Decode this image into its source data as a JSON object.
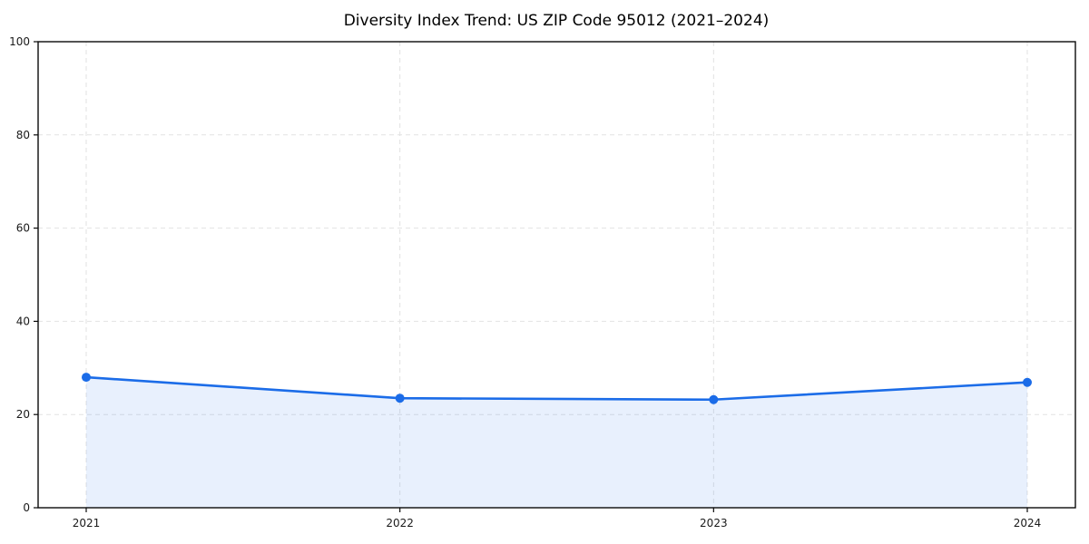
{
  "chart_data": {
    "type": "area",
    "title": "Diversity Index Trend: US ZIP Code 95012 (2021–2024)",
    "categories": [
      "2021",
      "2022",
      "2023",
      "2024"
    ],
    "series": [
      {
        "name": "Diversity Index",
        "values": [
          28,
          23.5,
          23.2,
          26.9
        ]
      }
    ],
    "xlabel": "",
    "ylabel": "",
    "ylim": [
      0,
      100
    ],
    "yticks": [
      0,
      20,
      40,
      60,
      80,
      100
    ],
    "grid": "both-dashed",
    "legend_position": "none",
    "colors": {
      "line": "#1b6ce8",
      "marker": "#1b6ce8",
      "fill": "rgba(27, 108, 232, 0.10)",
      "gridline": "#e2e2e2",
      "spine": "#0a0a0a",
      "background": "#ffffff"
    },
    "marker_style": "circle",
    "marker_radius": 5,
    "line_width": 2.6
  }
}
